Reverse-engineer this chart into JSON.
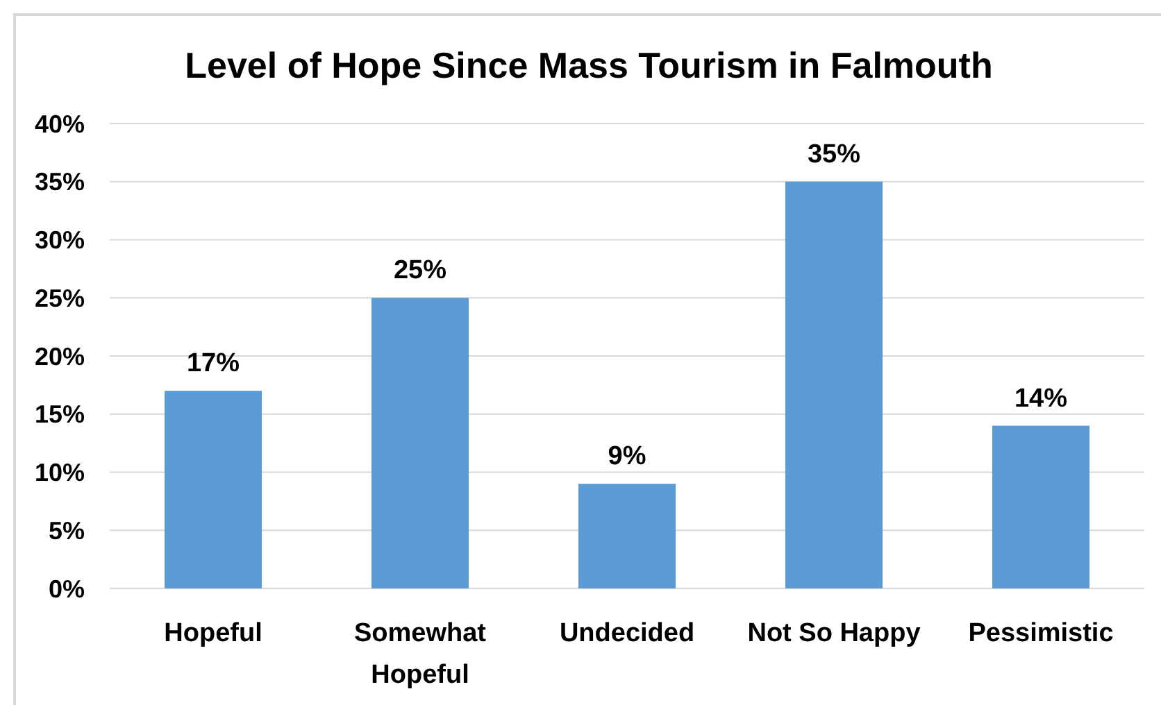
{
  "chart_data": {
    "type": "bar",
    "title": "Level of Hope Since Mass Tourism in Falmouth",
    "categories": [
      "Hopeful",
      "Somewhat Hopeful",
      "Undecided",
      "Not So Happy",
      "Pessimistic"
    ],
    "values": [
      17,
      25,
      9,
      35,
      14
    ],
    "value_labels": [
      "17%",
      "25%",
      "9%",
      "35%",
      "14%"
    ],
    "color": "#5b9bd5",
    "ylim": [
      0,
      40
    ],
    "yticks": [
      {
        "value": 0,
        "label": "0%"
      },
      {
        "value": 5,
        "label": "5%"
      },
      {
        "value": 10,
        "label": "10%"
      },
      {
        "value": 15,
        "label": "15%"
      },
      {
        "value": 20,
        "label": "20%"
      },
      {
        "value": 25,
        "label": "25%"
      },
      {
        "value": 30,
        "label": "30%"
      },
      {
        "value": 35,
        "label": "35%"
      },
      {
        "value": 40,
        "label": "40%"
      }
    ],
    "grid": "y"
  }
}
